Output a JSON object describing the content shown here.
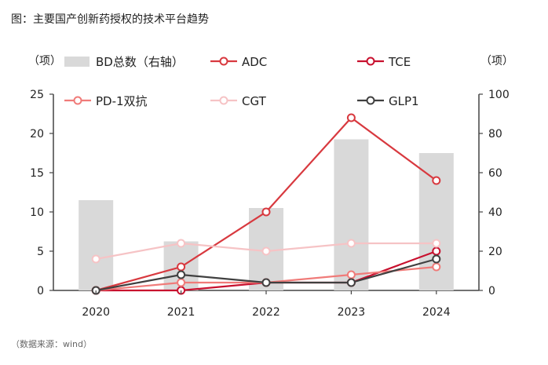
{
  "figure": {
    "title": "图：主要国产创新药授权的技术平台趋势",
    "source": "（数据来源：wind）"
  },
  "chart_data": {
    "type": "bar",
    "categories": [
      "2020",
      "2021",
      "2022",
      "2023",
      "2024"
    ],
    "left_axis": {
      "unit": "（项）",
      "ylim": [
        0,
        25
      ],
      "ticks": [
        "0",
        "5",
        "10",
        "15",
        "20",
        "25"
      ]
    },
    "right_axis": {
      "unit": "（项）",
      "ylim": [
        0,
        100
      ],
      "ticks": [
        "0",
        "20",
        "40",
        "60",
        "80",
        "100"
      ]
    },
    "bar_series": {
      "name": "BD总数（右轴）",
      "color": "#d9d9d9",
      "values": [
        46,
        25,
        42,
        77,
        70
      ]
    },
    "series": [
      {
        "name": "ADC",
        "axis": "left",
        "color": "#d8393f",
        "values": [
          0,
          3,
          10,
          22,
          14
        ]
      },
      {
        "name": "TCE",
        "axis": "left",
        "color": "#c8102e",
        "values": [
          0,
          0,
          1,
          1,
          5
        ]
      },
      {
        "name": "PD-1双抗",
        "axis": "left",
        "color": "#f07b79",
        "values": [
          0,
          1,
          1,
          2,
          3
        ]
      },
      {
        "name": "CGT",
        "axis": "left",
        "color": "#f6c3c5",
        "values": [
          4,
          6,
          5,
          6,
          6
        ]
      },
      {
        "name": "GLP1",
        "axis": "left",
        "color": "#404040",
        "values": [
          0,
          2,
          1,
          1,
          4
        ]
      }
    ],
    "legend_position": "top"
  }
}
